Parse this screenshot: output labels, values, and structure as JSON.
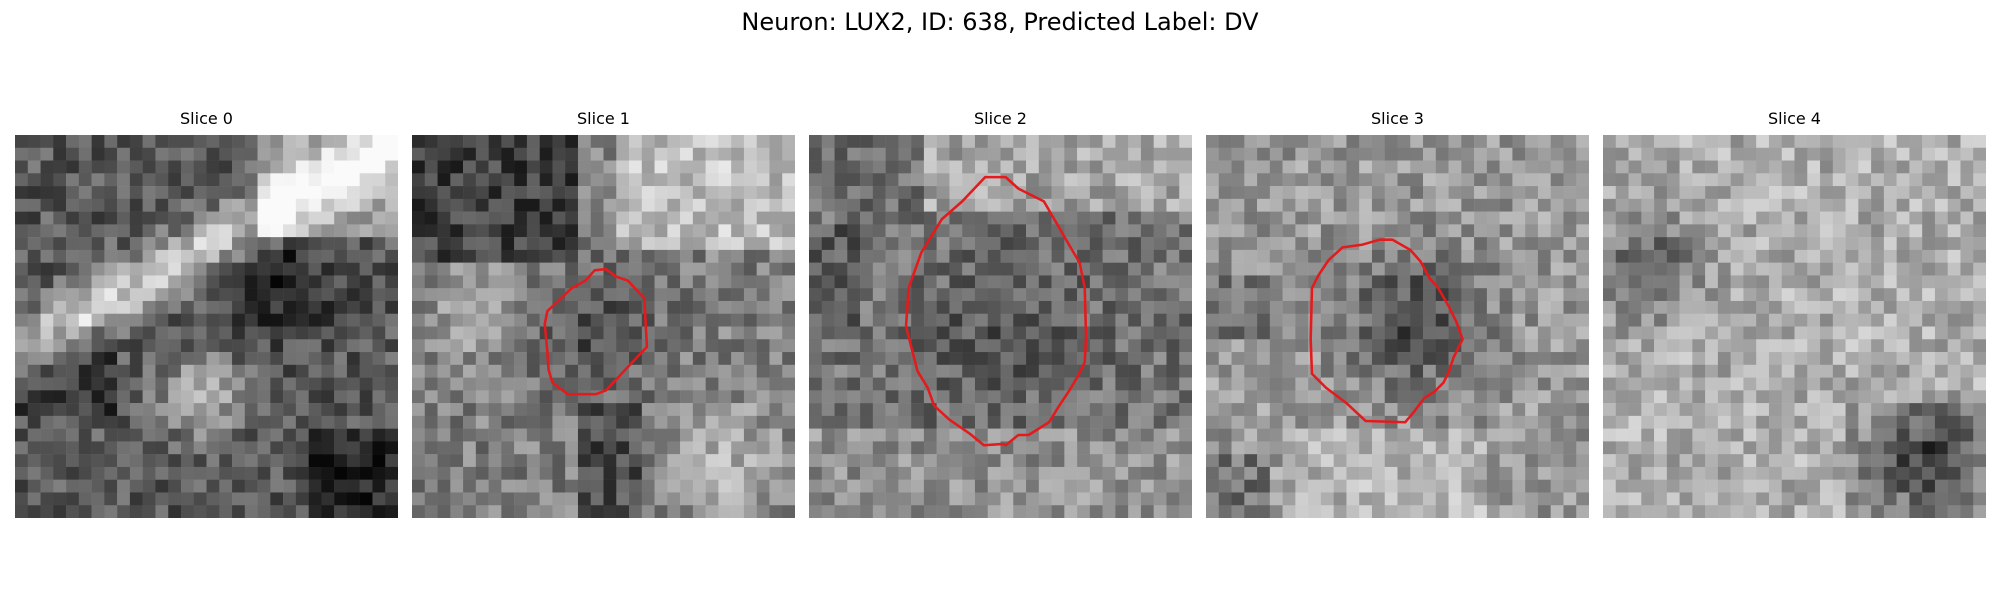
{
  "figure": {
    "suptitle": "Neuron: LUX2, ID: 638, Predicted Label: DV"
  },
  "colors": {
    "contour": "#e41a1c",
    "background": "#ffffff"
  },
  "panels": [
    {
      "title": "Slice 0",
      "has_contour": false
    },
    {
      "title": "Slice 1",
      "has_contour": true
    },
    {
      "title": "Slice 2",
      "has_contour": true
    },
    {
      "title": "Slice 3",
      "has_contour": true
    },
    {
      "title": "Slice 4",
      "has_contour": false
    }
  ]
}
